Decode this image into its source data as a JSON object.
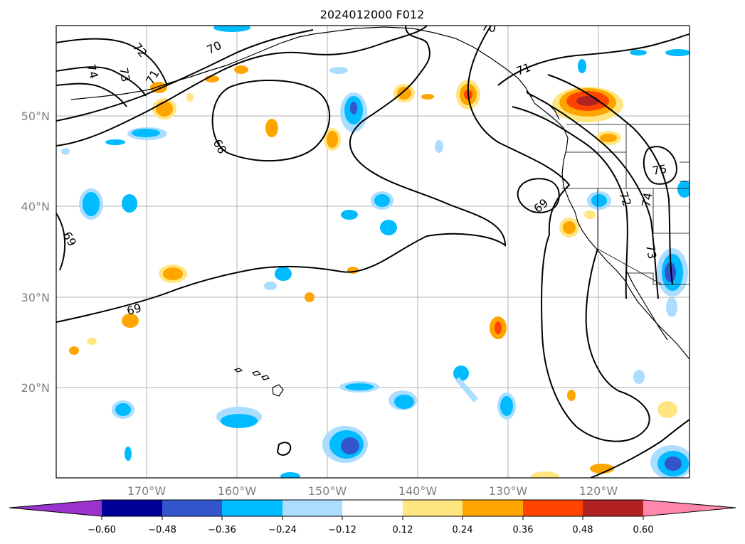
{
  "title": "2024012000 F012",
  "map": {
    "lon_range": [
      -180,
      -110
    ],
    "lat_range": [
      10,
      60
    ],
    "lat_labels": [
      "50°N",
      "40°N",
      "30°N",
      "20°N"
    ],
    "lon_labels": [
      "170°W",
      "160°W",
      "150°W",
      "140°W",
      "130°W",
      "120°W"
    ],
    "contour_labels": [
      "72",
      "74",
      "73",
      "70",
      "71",
      "71",
      "68",
      "69",
      "69",
      "69",
      "70",
      "72",
      "74",
      "73",
      "75"
    ]
  },
  "colorbar": {
    "colors": [
      "#9933cc",
      "#000099",
      "#3355cc",
      "#00bbff",
      "#aaddff",
      "#ffffff",
      "#ffe680",
      "#ffa500",
      "#ff4400",
      "#b22222",
      "#ff88aa"
    ],
    "labels": [
      "−0.60",
      "−0.48",
      "−0.36",
      "−0.24",
      "−0.12",
      "0.12",
      "0.24",
      "0.36",
      "0.48",
      "0.60"
    ]
  }
}
